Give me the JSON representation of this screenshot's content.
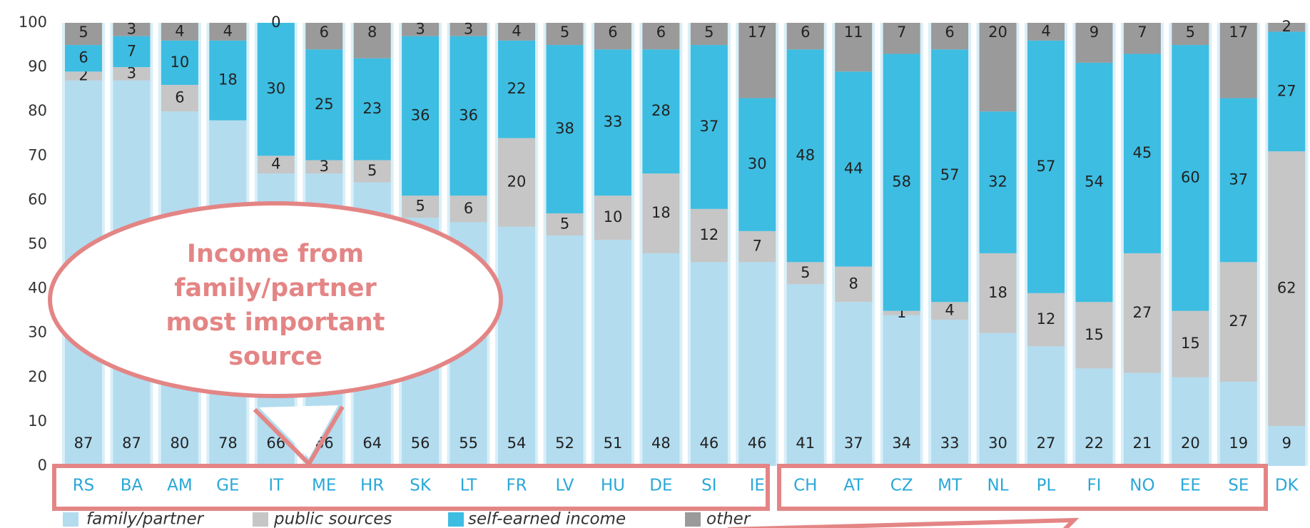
{
  "chart_data": {
    "type": "stacked_bar",
    "categories": [
      "RS",
      "BA",
      "AM",
      "GE",
      "IT",
      "ME",
      "HR",
      "SK",
      "LT",
      "FR",
      "LV",
      "HU",
      "DE",
      "SI",
      "IE",
      "CH",
      "AT",
      "CZ",
      "MT",
      "NL",
      "PL",
      "FI",
      "NO",
      "EE",
      "SE",
      "DK"
    ],
    "series": [
      {
        "name": "family/partner",
        "color": "#b3dcef",
        "values": [
          87,
          87,
          80,
          78,
          66,
          66,
          64,
          56,
          55,
          54,
          52,
          51,
          48,
          46,
          46,
          41,
          37,
          34,
          33,
          30,
          27,
          22,
          21,
          20,
          19,
          9
        ]
      },
      {
        "name": "public sources",
        "color": "#c6c6c6",
        "values": [
          2,
          3,
          6,
          null,
          4,
          3,
          5,
          5,
          6,
          20,
          5,
          10,
          18,
          12,
          7,
          5,
          8,
          1,
          4,
          18,
          12,
          15,
          27,
          15,
          27,
          62
        ]
      },
      {
        "name": "self-earned income",
        "color": "#3dbde2",
        "values": [
          6,
          7,
          10,
          18,
          30,
          25,
          23,
          36,
          36,
          22,
          38,
          33,
          28,
          37,
          30,
          48,
          44,
          58,
          57,
          32,
          57,
          54,
          45,
          60,
          37,
          27
        ]
      },
      {
        "name": "other",
        "color": "#9a9a9a",
        "values": [
          5,
          3,
          4,
          4,
          0,
          6,
          8,
          3,
          3,
          4,
          5,
          6,
          6,
          5,
          17,
          6,
          11,
          7,
          6,
          20,
          4,
          9,
          7,
          5,
          17,
          2
        ]
      }
    ],
    "ylim": [
      0,
      100
    ],
    "yticks": [
      0,
      10,
      20,
      30,
      40,
      50,
      60,
      70,
      80,
      90,
      100
    ],
    "annotation_lines": [
      "Income from",
      "family/partner",
      "most important",
      "source"
    ]
  }
}
